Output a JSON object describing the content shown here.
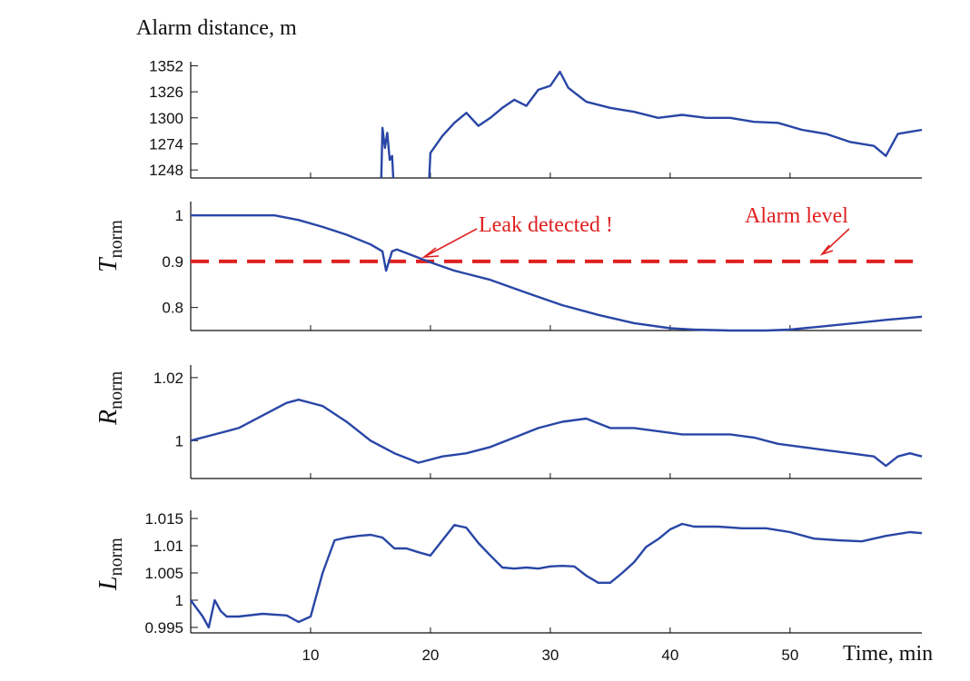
{
  "chart_data": [
    {
      "type": "line",
      "title": "Alarm distance, m",
      "xlim": [
        0,
        61
      ],
      "ylim": [
        1240,
        1356
      ],
      "yticks": [
        1352,
        1326,
        1300,
        1274,
        1248
      ],
      "yticklabels": [
        "1352",
        "1326",
        "1300",
        "1274",
        "1248"
      ],
      "xticks": [
        10,
        20,
        30,
        40,
        50
      ],
      "xticklabels": [],
      "colors": {
        "line": "#2946a6"
      },
      "series": [
        {
          "segments": [
            {
              "x": [
                15.9,
                16.0,
                16.2,
                16.4,
                16.6,
                16.8,
                16.9
              ],
              "y": [
                1240,
                1290,
                1270,
                1285,
                1258,
                1262,
                1240
              ]
            },
            {
              "x": [
                19.9,
                20.0,
                21,
                22,
                23,
                24,
                25,
                26,
                27,
                28,
                29,
                30,
                30.8,
                31.5,
                33,
                35,
                37,
                39,
                41,
                43,
                45,
                47,
                49,
                51,
                53,
                55,
                57,
                58,
                59,
                60,
                61
              ],
              "y": [
                1240,
                1265,
                1282,
                1295,
                1305,
                1292,
                1300,
                1310,
                1318,
                1312,
                1328,
                1332,
                1346,
                1330,
                1316,
                1310,
                1306,
                1300,
                1303,
                1300,
                1300,
                1296,
                1295,
                1288,
                1284,
                1276,
                1272,
                1262,
                1284,
                1286,
                1288
              ]
            }
          ]
        }
      ]
    },
    {
      "type": "line",
      "xlim": [
        0,
        61
      ],
      "ylim": [
        0.75,
        1.03
      ],
      "yticks": [
        1,
        0.9,
        0.8
      ],
      "yticklabels": [
        "1",
        "0.9",
        "0.8"
      ],
      "xticks": [
        10,
        20,
        30,
        40,
        50
      ],
      "xticklabels": [],
      "ylabel": "T",
      "ylabel_sub": "norm",
      "annotations": [
        "Leak detected !",
        "Alarm level"
      ],
      "alarm_level": 0.9,
      "colors": {
        "line": "#2946a6",
        "alarm": "#e02020"
      },
      "series": [
        {
          "x": [
            0,
            7,
            9,
            11,
            13,
            15,
            16.0,
            16.3,
            16.8,
            17.2,
            18,
            20,
            22,
            25,
            28,
            31,
            34,
            37,
            40,
            42,
            45,
            48,
            50,
            52,
            55,
            58,
            61
          ],
          "y": [
            1,
            1,
            0.99,
            0.975,
            0.958,
            0.937,
            0.922,
            0.88,
            0.922,
            0.926,
            0.918,
            0.898,
            0.88,
            0.86,
            0.832,
            0.805,
            0.784,
            0.766,
            0.755,
            0.752,
            0.75,
            0.75,
            0.752,
            0.757,
            0.765,
            0.773,
            0.78
          ]
        }
      ]
    },
    {
      "type": "line",
      "xlim": [
        0,
        61
      ],
      "ylim": [
        0.988,
        1.024
      ],
      "yticks": [
        1.02,
        1
      ],
      "yticklabels": [
        "1.02",
        "1"
      ],
      "xticks": [
        10,
        20,
        30,
        40,
        50
      ],
      "xticklabels": [],
      "ylabel": "R",
      "ylabel_sub": "norm",
      "colors": {
        "line": "#2946a6"
      },
      "series": [
        {
          "x": [
            0,
            2,
            4,
            6,
            8,
            9,
            11,
            13,
            15,
            17,
            19,
            21,
            23,
            25,
            27,
            29,
            31,
            33,
            35,
            37,
            39,
            41,
            43,
            45,
            47,
            49,
            51,
            53,
            55,
            57,
            58,
            59,
            60,
            61
          ],
          "y": [
            1,
            1.002,
            1.004,
            1.008,
            1.012,
            1.013,
            1.011,
            1.006,
            1.0,
            0.996,
            0.993,
            0.995,
            0.996,
            0.998,
            1.001,
            1.004,
            1.006,
            1.007,
            1.004,
            1.004,
            1.003,
            1.002,
            1.002,
            1.002,
            1.001,
            0.999,
            0.998,
            0.997,
            0.996,
            0.995,
            0.992,
            0.995,
            0.996,
            0.995
          ]
        }
      ]
    },
    {
      "type": "line",
      "xlim": [
        0,
        61
      ],
      "ylim": [
        0.994,
        1.0165
      ],
      "yticks": [
        1.015,
        1.01,
        1.005,
        1,
        0.995
      ],
      "yticklabels": [
        "1.015",
        "1.01",
        "1.005",
        "1",
        "0.995"
      ],
      "xticks": [
        10,
        20,
        30,
        40,
        50
      ],
      "xticklabels": [
        "10",
        "20",
        "30",
        "40",
        "50"
      ],
      "xlabel": "Time, min",
      "ylabel": "L",
      "ylabel_sub": "norm",
      "colors": {
        "line": "#2946a6"
      },
      "series": [
        {
          "x": [
            0,
            1,
            1.5,
            2,
            2.5,
            3,
            4,
            6,
            8,
            9,
            10,
            11,
            12,
            13,
            14,
            15,
            16,
            17,
            18,
            19,
            20,
            21,
            22,
            23,
            24,
            25,
            26,
            27,
            28,
            29,
            30,
            31,
            32,
            33,
            34,
            35,
            36,
            37,
            38,
            39,
            40,
            41,
            42,
            44,
            46,
            48,
            50,
            52,
            54,
            56,
            58,
            60,
            61
          ],
          "y": [
            1.0,
            0.997,
            0.995,
            1.0,
            0.998,
            0.997,
            0.997,
            0.9975,
            0.9972,
            0.996,
            0.997,
            1.005,
            1.011,
            1.0115,
            1.0118,
            1.012,
            1.0115,
            1.0095,
            1.0095,
            1.0088,
            1.0082,
            1.011,
            1.0138,
            1.0133,
            1.0105,
            1.0082,
            1.006,
            1.0058,
            1.006,
            1.0058,
            1.0062,
            1.0063,
            1.0062,
            1.0045,
            1.0032,
            1.0032,
            1.005,
            1.007,
            1.0098,
            1.0112,
            1.013,
            1.014,
            1.0135,
            1.0135,
            1.0132,
            1.0132,
            1.0125,
            1.0113,
            1.011,
            1.0108,
            1.0118,
            1.0125,
            1.0123
          ]
        }
      ]
    }
  ]
}
